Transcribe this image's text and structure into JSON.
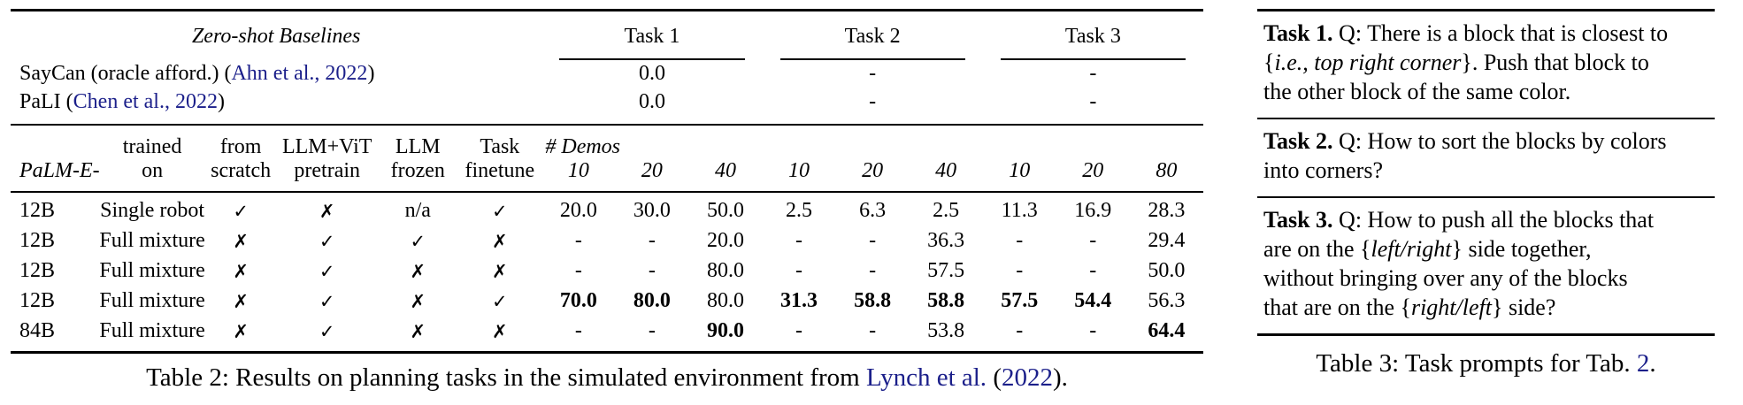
{
  "colors": {
    "link": "#1b1f8a"
  },
  "table2": {
    "zero_shot_label": "Zero-shot Baselines",
    "groups": [
      "Task 1",
      "Task 2",
      "Task 3"
    ],
    "baselines": [
      {
        "name": [
          {
            "text": "SayCan (oracle afford.) ("
          },
          {
            "text": "Ahn et al., 2022",
            "style": "link"
          },
          {
            "text": ")"
          }
        ],
        "values": [
          "0.0",
          "-",
          "-"
        ]
      },
      {
        "name": [
          {
            "text": "PaLI ("
          },
          {
            "text": "Chen et al., 2022",
            "style": "link"
          },
          {
            "text": ")"
          }
        ],
        "values": [
          "0.0",
          "-",
          "-"
        ]
      }
    ],
    "header": {
      "line1": [
        "",
        "trained",
        "from",
        "LLM+ViT",
        "LLM",
        "Task"
      ],
      "line2": [
        "PaLM-E-",
        "on",
        "scratch",
        "pretrain",
        "frozen",
        "finetune"
      ],
      "demos_label": "# Demos",
      "demo_counts": [
        "10",
        "20",
        "40",
        "10",
        "20",
        "40",
        "10",
        "20",
        "80"
      ]
    },
    "rows": [
      {
        "size": "12B",
        "trained_on": "Single robot",
        "flags": [
          "✓",
          "✗",
          "n/a",
          "✓"
        ],
        "values": [
          {
            "t": "20.0"
          },
          {
            "t": "30.0"
          },
          {
            "t": "50.0"
          },
          {
            "t": "2.5"
          },
          {
            "t": "6.3"
          },
          {
            "t": "2.5"
          },
          {
            "t": "11.3"
          },
          {
            "t": "16.9"
          },
          {
            "t": "28.3"
          }
        ]
      },
      {
        "size": "12B",
        "trained_on": "Full mixture",
        "flags": [
          "✗",
          "✓",
          "✓",
          "✗"
        ],
        "values": [
          {
            "t": "-"
          },
          {
            "t": "-"
          },
          {
            "t": "20.0"
          },
          {
            "t": "-"
          },
          {
            "t": "-"
          },
          {
            "t": "36.3"
          },
          {
            "t": "-"
          },
          {
            "t": "-"
          },
          {
            "t": "29.4"
          }
        ]
      },
      {
        "size": "12B",
        "trained_on": "Full mixture",
        "flags": [
          "✗",
          "✓",
          "✗",
          "✗"
        ],
        "values": [
          {
            "t": "-"
          },
          {
            "t": "-"
          },
          {
            "t": "80.0"
          },
          {
            "t": "-"
          },
          {
            "t": "-"
          },
          {
            "t": "57.5"
          },
          {
            "t": "-"
          },
          {
            "t": "-"
          },
          {
            "t": "50.0"
          }
        ]
      },
      {
        "size": "12B",
        "trained_on": "Full mixture",
        "flags": [
          "✗",
          "✓",
          "✗",
          "✓"
        ],
        "values": [
          {
            "t": "70.0",
            "b": true
          },
          {
            "t": "80.0",
            "b": true
          },
          {
            "t": "80.0"
          },
          {
            "t": "31.3",
            "b": true
          },
          {
            "t": "58.8",
            "b": true
          },
          {
            "t": "58.8",
            "b": true
          },
          {
            "t": "57.5",
            "b": true
          },
          {
            "t": "54.4",
            "b": true
          },
          {
            "t": "56.3"
          }
        ]
      },
      {
        "size": "84B",
        "trained_on": "Full mixture",
        "flags": [
          "✗",
          "✓",
          "✗",
          "✗"
        ],
        "values": [
          {
            "t": "-"
          },
          {
            "t": "-"
          },
          {
            "t": "90.0",
            "b": true
          },
          {
            "t": "-"
          },
          {
            "t": "-"
          },
          {
            "t": "53.8"
          },
          {
            "t": "-"
          },
          {
            "t": "-"
          },
          {
            "t": "64.4",
            "b": true
          }
        ]
      }
    ],
    "caption": [
      {
        "text": "Table 2: Results on planning tasks in the simulated environment from "
      },
      {
        "text": "Lynch et al.",
        "style": "link"
      },
      {
        "text": " ("
      },
      {
        "text": "2022",
        "style": "link"
      },
      {
        "text": ")."
      }
    ]
  },
  "table3": {
    "tasks": [
      {
        "segments": [
          {
            "text": "Task 1.",
            "style": "bold"
          },
          {
            "text": " Q: There is a block that is closest to"
          },
          {
            "style": "break"
          },
          {
            "text": "{"
          },
          {
            "text": "i.e., top right corner",
            "style": "italic"
          },
          {
            "text": "}. Push that block to"
          },
          {
            "style": "break"
          },
          {
            "text": "the other block of the same color."
          }
        ]
      },
      {
        "segments": [
          {
            "text": "Task 2.",
            "style": "bold"
          },
          {
            "text": " Q: How to sort the blocks by colors"
          },
          {
            "style": "break"
          },
          {
            "text": "into corners?"
          }
        ]
      },
      {
        "segments": [
          {
            "text": "Task 3.",
            "style": "bold"
          },
          {
            "text": " Q: How to push all the blocks that"
          },
          {
            "style": "break"
          },
          {
            "text": "are on the {"
          },
          {
            "text": "left/right",
            "style": "italic"
          },
          {
            "text": "} side together,"
          },
          {
            "style": "break"
          },
          {
            "text": "without bringing over any of the blocks"
          },
          {
            "style": "break"
          },
          {
            "text": "that are on the {"
          },
          {
            "text": "right/left",
            "style": "italic"
          },
          {
            "text": "} side?"
          }
        ]
      }
    ],
    "caption": [
      {
        "text": "Table 3: Task prompts for Tab. "
      },
      {
        "text": "2",
        "style": "link"
      },
      {
        "text": "."
      }
    ]
  }
}
